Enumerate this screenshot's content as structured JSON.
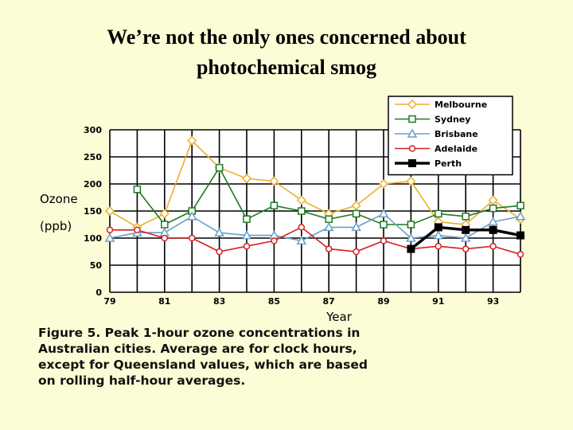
{
  "slide": {
    "title_line1": "We’re not the only ones concerned about",
    "title_line2": "photochemical smog"
  },
  "caption": {
    "line1": "Figure 5. Peak 1-hour ozone concentrations in",
    "line2": "Australian cities. Average are for clock hours,",
    "line3": "except for Queensland values, which are based",
    "line4": "on rolling half-hour averages."
  },
  "chart_data": {
    "type": "line",
    "xlabel": "Year",
    "ylabel_line1": "Ozone",
    "ylabel_line2": "(ppb)",
    "ylim": [
      0,
      300
    ],
    "yticks": [
      0,
      50,
      100,
      150,
      200,
      250,
      300
    ],
    "xlim": [
      79,
      94
    ],
    "xticks": [
      {
        "value": 79,
        "label": "79"
      },
      {
        "value": 81,
        "label": "81"
      },
      {
        "value": 83,
        "label": "83"
      },
      {
        "value": 85,
        "label": "85"
      },
      {
        "value": 87,
        "label": "87"
      },
      {
        "value": 89,
        "label": "89"
      },
      {
        "value": 91,
        "label": "91"
      },
      {
        "value": 93,
        "label": "93"
      }
    ],
    "grid": true,
    "legend_position": "top-right",
    "series": [
      {
        "name": "Melbourne",
        "color": "#e8b030",
        "marker": "diamond",
        "x": [
          79,
          80,
          81,
          82,
          83,
          84,
          85,
          86,
          87,
          88,
          89,
          90,
          91,
          92,
          93,
          94
        ],
        "y": [
          150,
          120,
          145,
          280,
          230,
          210,
          205,
          170,
          145,
          160,
          200,
          205,
          130,
          125,
          170,
          135
        ]
      },
      {
        "name": "Sydney",
        "color": "#1e7a1e",
        "marker": "square",
        "x": [
          80,
          81,
          82,
          83,
          84,
          85,
          86,
          87,
          88,
          89,
          90,
          91,
          92,
          93,
          94
        ],
        "y": [
          190,
          125,
          150,
          230,
          135,
          160,
          150,
          135,
          145,
          125,
          125,
          145,
          140,
          155,
          160
        ]
      },
      {
        "name": "Brisbane",
        "color": "#6aa0c8",
        "marker": "triangle",
        "x": [
          79,
          80,
          81,
          82,
          83,
          84,
          85,
          86,
          87,
          88,
          89,
          90,
          91,
          92,
          93,
          94
        ],
        "y": [
          100,
          110,
          110,
          140,
          110,
          105,
          105,
          95,
          120,
          120,
          145,
          100,
          105,
          100,
          130,
          140
        ]
      },
      {
        "name": "Adelaide",
        "color": "#d42020",
        "marker": "circle",
        "x": [
          79,
          80,
          81,
          82,
          83,
          84,
          85,
          86,
          87,
          88,
          89,
          90,
          91,
          92,
          93,
          94
        ],
        "y": [
          115,
          115,
          100,
          100,
          75,
          85,
          95,
          120,
          80,
          75,
          95,
          80,
          85,
          80,
          85,
          70
        ]
      },
      {
        "name": "Perth",
        "color": "#000000",
        "marker": "filled-square",
        "x": [
          90,
          91,
          92,
          93,
          94
        ],
        "y": [
          80,
          120,
          115,
          115,
          105
        ]
      }
    ]
  }
}
